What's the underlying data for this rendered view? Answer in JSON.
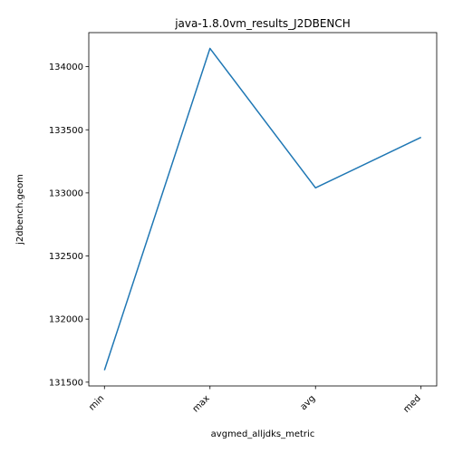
{
  "chart_data": {
    "type": "line",
    "title": "java-1.8.0vm_results_J2DBENCH",
    "xlabel": "avgmed_alljdks_metric",
    "ylabel": "j2dbench.geom",
    "categories": [
      "min",
      "max",
      "avg",
      "med"
    ],
    "series": [
      {
        "values": [
          131595,
          134145,
          133040,
          133440
        ]
      }
    ],
    "ylim": [
      131470,
      134270
    ],
    "yticks": [
      131500,
      132000,
      132500,
      133000,
      133500,
      134000
    ],
    "ytick_labels": [
      "131500",
      "132000",
      "132500",
      "133000",
      "133500",
      "134000"
    ],
    "grid": false,
    "line_color": "#1f77b4",
    "xtick_rotation_deg": 45
  }
}
